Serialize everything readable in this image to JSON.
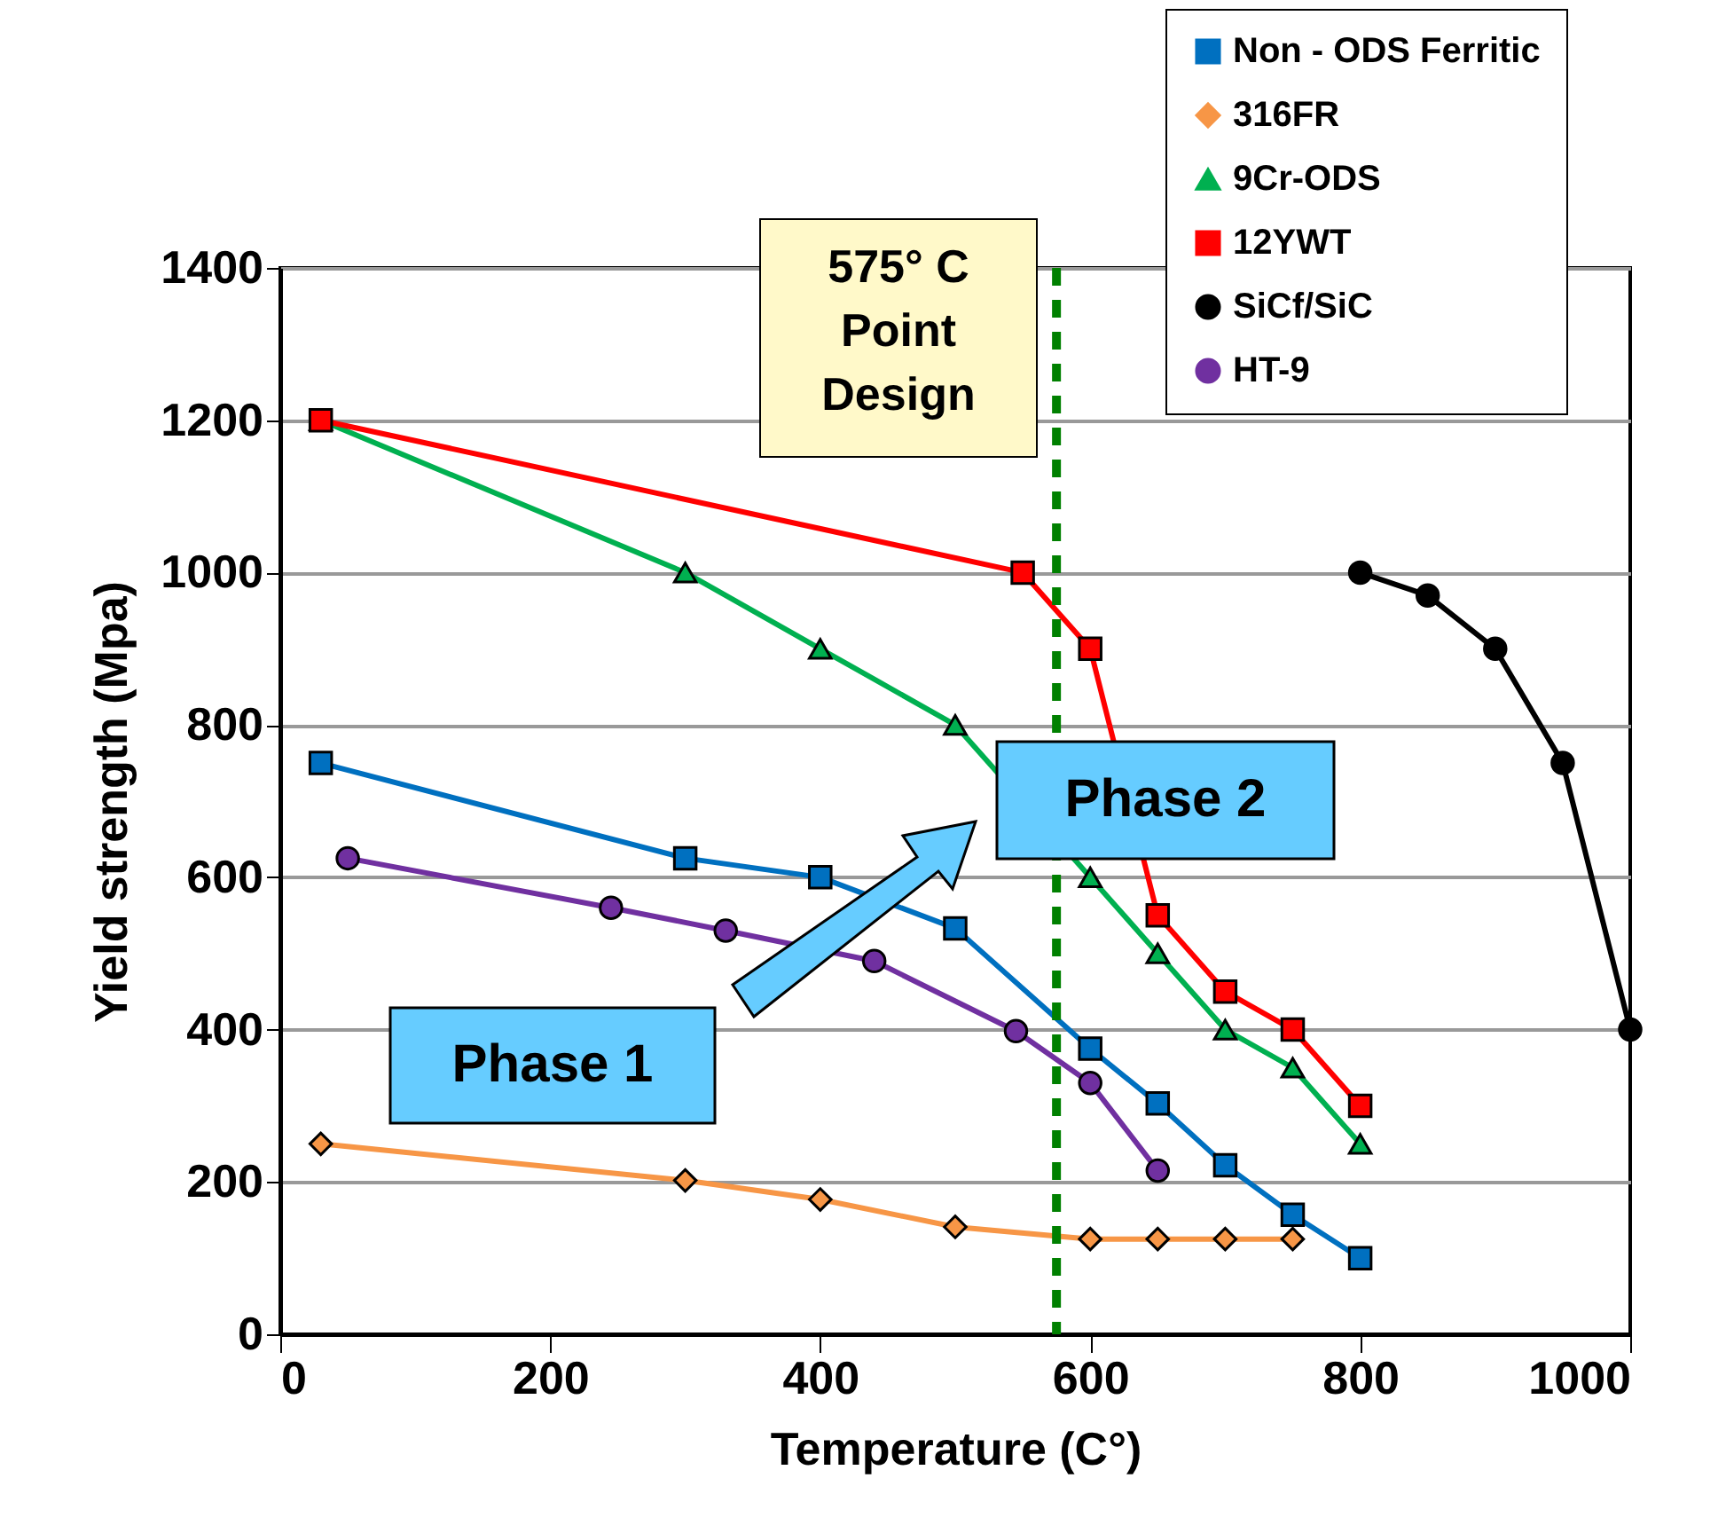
{
  "chart_data": {
    "type": "line",
    "xlabel": "Temperature (C°)",
    "ylabel": "Yield strength (Mpa)",
    "xlim": [
      0,
      1000
    ],
    "xticks": [
      0,
      200,
      400,
      600,
      800,
      1000
    ],
    "ylim": [
      0,
      1400
    ],
    "yticks": [
      0,
      200,
      400,
      600,
      800,
      1000,
      1200,
      1400
    ],
    "grid": "y",
    "legend": "top right",
    "line_style": "solid",
    "series": [
      {
        "name": "Non - ODS Ferritic",
        "color": "#0070c0",
        "marker": "square",
        "x": [
          30,
          300,
          400,
          500,
          600,
          650,
          700,
          750,
          800
        ],
        "values": [
          750,
          625,
          600,
          533,
          375,
          303,
          222,
          157,
          100
        ]
      },
      {
        "name": "316FR",
        "color": "#f79646",
        "marker": "diamond",
        "x": [
          30,
          300,
          400,
          500,
          600,
          650,
          700,
          750
        ],
        "values": [
          250,
          202,
          177,
          141,
          125,
          125,
          125,
          125
        ]
      },
      {
        "name": "9Cr-ODS",
        "color": "#00b050",
        "marker": "triangle",
        "x": [
          30,
          300,
          400,
          500,
          600,
          650,
          700,
          750,
          800
        ],
        "values": [
          1200,
          1000,
          900,
          800,
          600,
          500,
          400,
          350,
          250
        ]
      },
      {
        "name": "12YWT",
        "color": "#ff0000",
        "marker": "square",
        "x": [
          30,
          550,
          600,
          650,
          700,
          750,
          800
        ],
        "values": [
          1200,
          1000,
          900,
          550,
          450,
          400,
          300
        ]
      },
      {
        "name": "SiCf/SiC",
        "color": "#000000",
        "marker": "circle",
        "x": [
          800,
          850,
          900,
          950,
          1000
        ],
        "values": [
          1000,
          970,
          900,
          750,
          400
        ]
      },
      {
        "name": "HT-9",
        "color": "#7030a0",
        "marker": "circle",
        "x": [
          50,
          245,
          330,
          440,
          545,
          600,
          650
        ],
        "values": [
          625,
          560,
          530,
          490,
          398,
          330,
          215
        ]
      }
    ],
    "ref_lines": [
      {
        "axis": "x",
        "value": 575,
        "label": "575° C Point Design",
        "color": "#008000",
        "line_style": "dashed"
      }
    ],
    "annotations": [
      "Phase 1",
      "Phase 2"
    ]
  }
}
